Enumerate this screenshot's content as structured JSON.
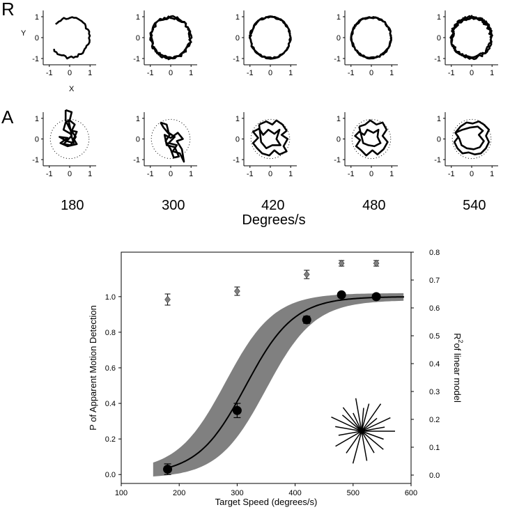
{
  "panel_labels": {
    "row_r": "R",
    "row_a": "A",
    "y_axis": "Y",
    "x_axis": "X"
  },
  "degrees_label": "Degrees/s",
  "chart_data": [
    {
      "type": "line",
      "panel": "R",
      "speeds": [
        "180",
        "300",
        "420",
        "480",
        "540"
      ],
      "xlim": [
        -1.3,
        1.3
      ],
      "ylim": [
        -1.3,
        1.3
      ],
      "xticks": [
        "-1",
        "0",
        "1"
      ],
      "yticks": [
        "1",
        "0",
        "-1"
      ],
      "traces": [
        {
          "speed": "180",
          "arc_start_deg": 215,
          "arc_end_deg": 500,
          "radius": 0.95,
          "jitter": 0.06
        },
        {
          "speed": "300",
          "arc_start_deg": 0,
          "arc_end_deg": 720,
          "radius": 0.97,
          "jitter": 0.07
        },
        {
          "speed": "420",
          "arc_start_deg": 0,
          "arc_end_deg": 720,
          "radius": 0.98,
          "jitter": 0.04
        },
        {
          "speed": "480",
          "arc_start_deg": 0,
          "arc_end_deg": 720,
          "radius": 0.97,
          "jitter": 0.04
        },
        {
          "speed": "540",
          "arc_start_deg": 0,
          "arc_end_deg": 900,
          "radius": 0.96,
          "jitter": 0.09
        }
      ]
    },
    {
      "type": "line",
      "panel": "A",
      "speeds": [
        "180",
        "300",
        "420",
        "480",
        "540"
      ],
      "xlim": [
        -1.3,
        1.3
      ],
      "ylim": [
        -1.3,
        1.3
      ],
      "xticks": [
        "-1",
        "0",
        "1"
      ],
      "yticks": [
        "1",
        "0",
        "-1"
      ],
      "reference_circle_radius": 0.95,
      "traces": [
        {
          "speed": "180",
          "points": [
            [
              -0.2,
              1.4
            ],
            [
              0.1,
              1.3
            ],
            [
              0.0,
              0.9
            ],
            [
              0.25,
              0.7
            ],
            [
              0.1,
              0.4
            ],
            [
              0.35,
              0.35
            ],
            [
              0.2,
              0.0
            ],
            [
              0.35,
              -0.25
            ],
            [
              -0.1,
              -0.35
            ],
            [
              -0.45,
              -0.2
            ],
            [
              -0.1,
              0.05
            ],
            [
              -0.5,
              0.1
            ],
            [
              -0.15,
              -0.1
            ],
            [
              0.2,
              -0.2
            ],
            [
              0.05,
              0.25
            ],
            [
              -0.3,
              0.45
            ],
            [
              -0.2,
              0.8
            ],
            [
              -0.05,
              0.9
            ],
            [
              0.1,
              0.15
            ],
            [
              -0.3,
              -0.25
            ],
            [
              0.05,
              -0.3
            ],
            [
              0.3,
              0.1
            ],
            [
              0.0,
              0.5
            ],
            [
              -0.2,
              0.9
            ],
            [
              -0.2,
              1.4
            ]
          ]
        },
        {
          "speed": "300",
          "points": [
            [
              -0.5,
              0.8
            ],
            [
              -0.2,
              0.7
            ],
            [
              -0.1,
              0.3
            ],
            [
              0.2,
              0.1
            ],
            [
              -0.1,
              -0.2
            ],
            [
              0.3,
              -0.3
            ],
            [
              0.1,
              -0.6
            ],
            [
              0.45,
              -0.7
            ],
            [
              0.65,
              -1.1
            ],
            [
              0.55,
              -0.5
            ],
            [
              0.3,
              -0.1
            ],
            [
              0.6,
              0.0
            ],
            [
              0.35,
              0.3
            ],
            [
              0.0,
              0.05
            ],
            [
              -0.3,
              0.2
            ],
            [
              -0.2,
              -0.3
            ],
            [
              0.2,
              -0.4
            ],
            [
              0.4,
              -0.85
            ],
            [
              0.15,
              -0.9
            ],
            [
              0.0,
              -0.5
            ],
            [
              -0.25,
              -0.1
            ],
            [
              -0.05,
              0.2
            ],
            [
              -0.35,
              0.55
            ],
            [
              -0.5,
              0.8
            ]
          ]
        },
        {
          "speed": "420",
          "points": [
            [
              -0.55,
              0.7
            ],
            [
              -0.2,
              0.85
            ],
            [
              0.1,
              0.7
            ],
            [
              0.3,
              0.9
            ],
            [
              0.6,
              0.7
            ],
            [
              0.8,
              0.4
            ],
            [
              0.55,
              0.2
            ],
            [
              0.85,
              0.0
            ],
            [
              0.65,
              -0.35
            ],
            [
              0.8,
              -0.6
            ],
            [
              0.45,
              -0.75
            ],
            [
              0.2,
              -0.55
            ],
            [
              -0.05,
              -0.8
            ],
            [
              -0.4,
              -0.7
            ],
            [
              -0.65,
              -0.45
            ],
            [
              -0.85,
              -0.2
            ],
            [
              -0.6,
              0.05
            ],
            [
              -0.85,
              0.35
            ],
            [
              -0.55,
              0.5
            ],
            [
              -0.35,
              0.2
            ],
            [
              -0.1,
              0.45
            ],
            [
              0.2,
              0.25
            ],
            [
              0.45,
              0.45
            ],
            [
              0.3,
              0.0
            ],
            [
              0.5,
              -0.3
            ],
            [
              0.1,
              -0.3
            ],
            [
              -0.2,
              -0.45
            ],
            [
              -0.45,
              -0.15
            ],
            [
              -0.55,
              0.7
            ]
          ]
        },
        {
          "speed": "480",
          "points": [
            [
              -0.6,
              0.6
            ],
            [
              -0.3,
              0.7
            ],
            [
              -0.05,
              0.9
            ],
            [
              0.25,
              0.7
            ],
            [
              0.55,
              0.8
            ],
            [
              0.75,
              0.45
            ],
            [
              0.55,
              0.15
            ],
            [
              0.8,
              -0.15
            ],
            [
              0.6,
              -0.5
            ],
            [
              0.3,
              -0.75
            ],
            [
              0.05,
              -0.55
            ],
            [
              -0.25,
              -0.8
            ],
            [
              -0.5,
              -0.55
            ],
            [
              -0.75,
              -0.35
            ],
            [
              -0.55,
              -0.05
            ],
            [
              -0.8,
              0.15
            ],
            [
              -0.6,
              0.35
            ],
            [
              -0.35,
              0.2
            ],
            [
              -0.2,
              0.45
            ],
            [
              0.1,
              0.3
            ],
            [
              0.35,
              0.45
            ],
            [
              0.3,
              0.1
            ],
            [
              0.45,
              -0.2
            ],
            [
              0.15,
              -0.35
            ],
            [
              -0.15,
              -0.3
            ],
            [
              -0.4,
              -0.2
            ],
            [
              -0.6,
              0.6
            ]
          ]
        },
        {
          "speed": "540",
          "points": [
            [
              -0.8,
              0.3
            ],
            [
              -0.55,
              0.6
            ],
            [
              -0.25,
              0.8
            ],
            [
              0.05,
              0.75
            ],
            [
              0.35,
              0.85
            ],
            [
              0.6,
              0.7
            ],
            [
              0.85,
              0.45
            ],
            [
              0.7,
              0.15
            ],
            [
              0.85,
              -0.15
            ],
            [
              0.7,
              -0.45
            ],
            [
              0.45,
              -0.7
            ],
            [
              0.15,
              -0.75
            ],
            [
              -0.15,
              -0.65
            ],
            [
              -0.45,
              -0.7
            ],
            [
              -0.7,
              -0.45
            ],
            [
              -0.85,
              -0.15
            ],
            [
              -0.65,
              0.1
            ],
            [
              -0.8,
              0.3
            ],
            [
              -0.45,
              0.45
            ],
            [
              -0.1,
              0.55
            ],
            [
              0.3,
              0.6
            ],
            [
              0.55,
              0.4
            ],
            [
              0.35,
              0.2
            ],
            [
              0.6,
              -0.1
            ],
            [
              0.4,
              -0.4
            ],
            [
              0.1,
              -0.5
            ],
            [
              -0.25,
              -0.45
            ],
            [
              -0.5,
              -0.3
            ],
            [
              -0.6,
              0.0
            ],
            [
              -0.8,
              0.3
            ]
          ]
        }
      ]
    },
    {
      "type": "scatter",
      "panel": "bottom",
      "xlabel": "Target Speed (degrees/s)",
      "ylabel": "P of Apparent Motion Detection",
      "y2label_main": "R",
      "y2label_sup": "2",
      "y2label_rest": "of linear model",
      "xlim": [
        100,
        600
      ],
      "ylim": [
        -0.05,
        1.25
      ],
      "y2lim": [
        -0.03,
        0.8
      ],
      "xticks": [
        "100",
        "200",
        "300",
        "400",
        "500",
        "600"
      ],
      "yticks": [
        "0.0",
        "0.2",
        "0.4",
        "0.6",
        "0.8",
        "1.0"
      ],
      "y2ticks": [
        "0.0",
        "0.1",
        "0.2",
        "0.3",
        "0.4",
        "0.5",
        "0.6",
        "0.7",
        "0.8"
      ],
      "grid": false,
      "series": [
        {
          "marker": "circle",
          "color": "#000000",
          "x": [
            180,
            300,
            420,
            480,
            540
          ],
          "y": [
            0.03,
            0.36,
            0.87,
            1.01,
            1.0
          ],
          "err": [
            0.03,
            0.04,
            0.02,
            0.01,
            0.01
          ]
        },
        {
          "marker": "diamond",
          "color": "#808080",
          "x": [
            180,
            300,
            420,
            480,
            540
          ],
          "y2": [
            0.63,
            0.66,
            0.72,
            0.76,
            0.76
          ],
          "err2": [
            0.02,
            0.015,
            0.015,
            0.01,
            0.01
          ]
        }
      ],
      "fit": {
        "type": "logistic",
        "midpoint": 315,
        "slope": 0.024,
        "color": "#000000",
        "band_color": "#808080",
        "band_midpoint_low": 280,
        "band_midpoint_high": 350
      },
      "inset_star_angles_deg": [
        0,
        10,
        25,
        40,
        55,
        75,
        85,
        100,
        115,
        128,
        140,
        155,
        170,
        190,
        210,
        235,
        255,
        280,
        300,
        320,
        340
      ],
      "inset_star_lengths": [
        1.0,
        0.7,
        0.95,
        0.6,
        1.0,
        0.85,
        0.7,
        1.0,
        0.6,
        0.9,
        0.75,
        1.0,
        0.8,
        0.7,
        0.9,
        0.8,
        1.0,
        0.9,
        0.75,
        0.85,
        0.7
      ]
    }
  ]
}
